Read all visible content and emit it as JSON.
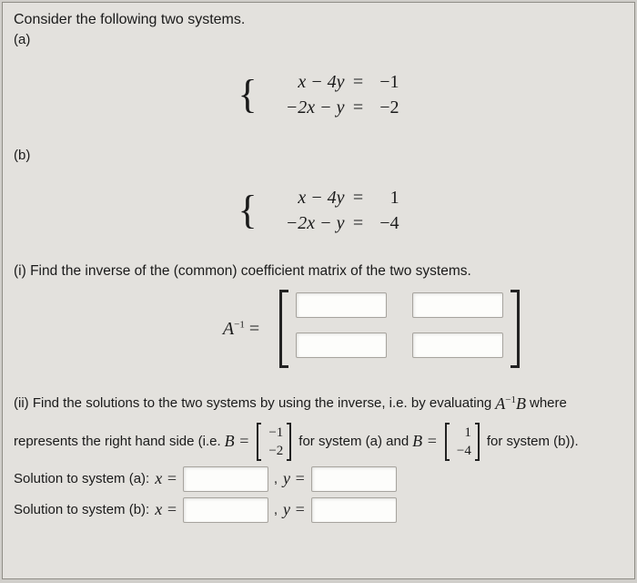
{
  "header": "Consider the following two systems.",
  "parts": {
    "a_label": "(a)",
    "b_label": "(b)"
  },
  "system_a": {
    "row1": {
      "lhs": "x − 4y",
      "eq": "=",
      "rhs": "−1"
    },
    "row2": {
      "lhs": "−2x − y",
      "eq": "=",
      "rhs": "−2"
    }
  },
  "system_b": {
    "row1": {
      "lhs": "x − 4y",
      "eq": "=",
      "rhs": "1"
    },
    "row2": {
      "lhs": "−2x − y",
      "eq": "=",
      "rhs": "−4"
    }
  },
  "part_i": {
    "prompt": "(i) Find the inverse of the (common) coefficient matrix of the two systems.",
    "label_A": "A",
    "label_exp": "−1",
    "label_eq": " ="
  },
  "part_ii": {
    "line1_a": "(ii) Find the solutions to the two systems by using the inverse, i.e. by evaluating ",
    "AinvB_A": "A",
    "AinvB_exp": "−1",
    "AinvB_B": "B",
    "line1_b": " where",
    "line2_a": "represents the right hand side (i.e. ",
    "Beq": "B =",
    "mat_a": {
      "r1": "−1",
      "r2": "−2"
    },
    "line2_b": " for system (a) and ",
    "mat_b": {
      "r1": "1",
      "r2": "−4"
    },
    "line2_c": " for system (b)).",
    "sol_a_label": "Solution to system (a): ",
    "sol_b_label": "Solution to system (b): ",
    "xeq": "x =",
    "yeq": "y =",
    "comma": ", "
  },
  "colors": {
    "page_bg": "#e3e1dd",
    "body_bg": "#d0ceca",
    "border": "#8f8d86",
    "text": "#1a1a1a",
    "input_bg": "#fdfdfb",
    "input_border": "#a7a49e"
  }
}
